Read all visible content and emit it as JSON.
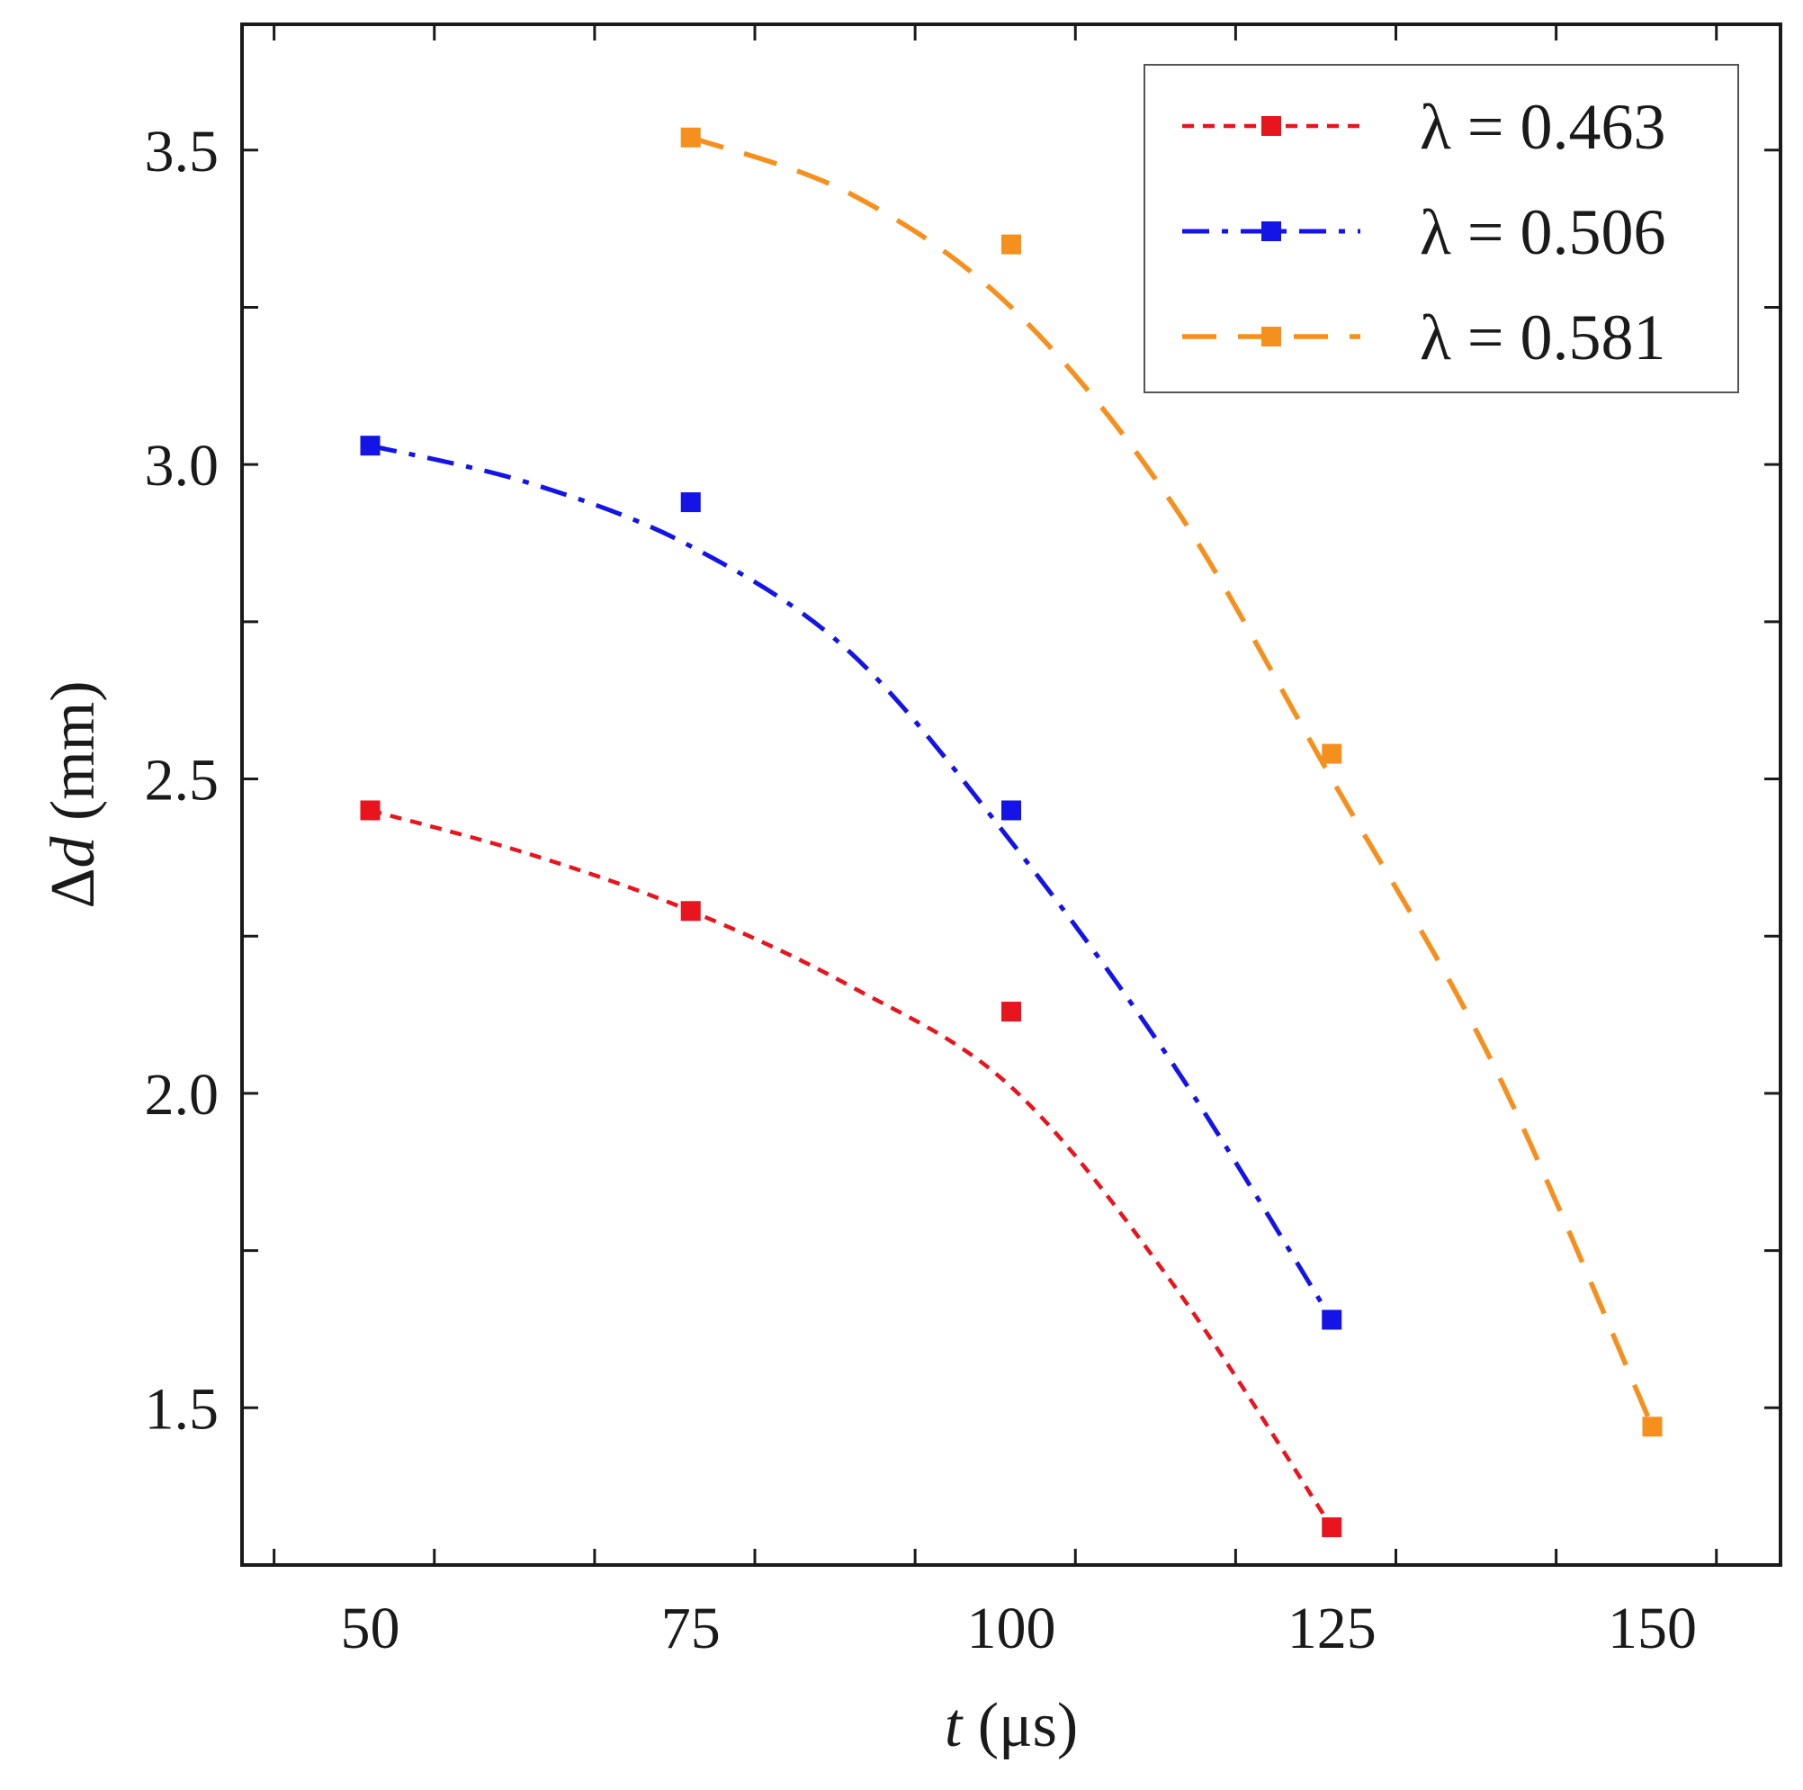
{
  "chart_data": {
    "type": "line",
    "title": "",
    "xlabel": {
      "var": "t",
      "unit": " (μs)"
    },
    "ylabel": {
      "prefix": "Δ",
      "var": "d",
      "unit": " (mm)"
    },
    "xlim": [
      40,
      160
    ],
    "ylim": [
      1.25,
      3.7
    ],
    "xticks": [
      50,
      75,
      100,
      125,
      150
    ],
    "xtick_labels": [
      "50",
      "75",
      "100",
      "125",
      "150"
    ],
    "yticks": [
      1.5,
      2.0,
      2.5,
      3.0,
      3.5
    ],
    "ytick_labels": [
      "1.5",
      "2.0",
      "2.5",
      "3.0",
      "3.5"
    ],
    "legend_position": "top-right",
    "series": [
      {
        "name": "λ = 0.463",
        "color": "#e8141e",
        "style": "dotted",
        "points": [
          [
            50,
            2.45
          ],
          [
            75,
            2.29
          ],
          [
            100,
            2.13
          ],
          [
            125,
            1.31
          ]
        ],
        "fit": [
          [
            50,
            2.45
          ],
          [
            62.5,
            2.38
          ],
          [
            75,
            2.29
          ],
          [
            87.5,
            2.17
          ],
          [
            100,
            2.01
          ],
          [
            112.5,
            1.7
          ],
          [
            125,
            1.31
          ]
        ]
      },
      {
        "name": "λ = 0.506",
        "color": "#1414e6",
        "style": "dash-dot",
        "points": [
          [
            50,
            3.03
          ],
          [
            75,
            2.94
          ],
          [
            100,
            2.45
          ],
          [
            125,
            1.64
          ]
        ],
        "fit": [
          [
            50,
            3.03
          ],
          [
            62.5,
            2.97
          ],
          [
            75,
            2.87
          ],
          [
            87.5,
            2.7
          ],
          [
            100,
            2.4
          ],
          [
            112.5,
            2.05
          ],
          [
            125,
            1.64
          ]
        ]
      },
      {
        "name": "λ = 0.581",
        "color": "#f5901e",
        "style": "dashed",
        "points": [
          [
            75,
            3.52
          ],
          [
            100,
            3.35
          ],
          [
            125,
            2.54
          ],
          [
            150,
            1.47
          ]
        ],
        "fit": [
          [
            75,
            3.52
          ],
          [
            87.5,
            3.43
          ],
          [
            100,
            3.25
          ],
          [
            112.5,
            2.94
          ],
          [
            125,
            2.5
          ],
          [
            137.5,
            2.05
          ],
          [
            150,
            1.47
          ]
        ]
      }
    ]
  }
}
